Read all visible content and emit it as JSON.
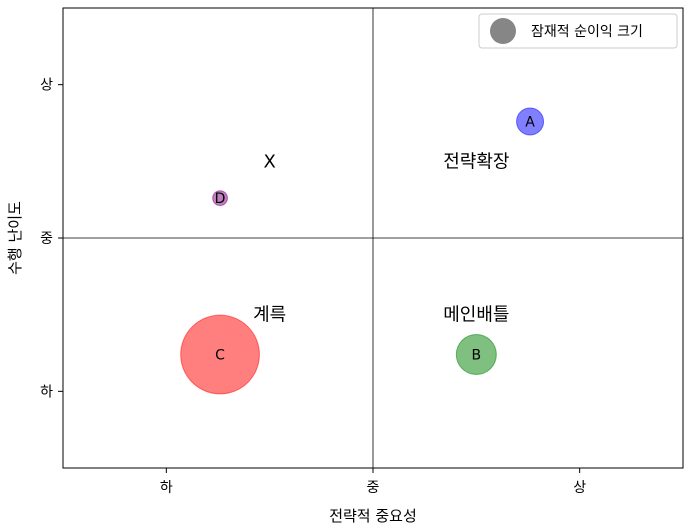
{
  "chart_data": {
    "type": "scatter",
    "title": "",
    "xlabel": "전략적 중요성",
    "ylabel": "수행 난이도",
    "xlim": [
      0,
      1.5
    ],
    "ylim": [
      0,
      1.5
    ],
    "xticks": [
      {
        "value": 0.25,
        "label": "하"
      },
      {
        "value": 0.75,
        "label": "중"
      },
      {
        "value": 1.25,
        "label": "상"
      }
    ],
    "yticks": [
      {
        "value": 0.25,
        "label": "하"
      },
      {
        "value": 0.75,
        "label": "중"
      },
      {
        "value": 1.25,
        "label": "상"
      }
    ],
    "divider_lines": {
      "x": 0.75,
      "y": 0.75
    },
    "grid": false,
    "legend": {
      "label": "잠재적 순이익 크기",
      "placement": "top-right",
      "color": "#808080"
    },
    "quadrant_labels": [
      {
        "text": "X",
        "x": 0.5,
        "y": 1.0
      },
      {
        "text": "전략확장",
        "x": 1.0,
        "y": 1.0
      },
      {
        "text": "계륵",
        "x": 0.5,
        "y": 0.5
      },
      {
        "text": "메인배틀",
        "x": 1.0,
        "y": 0.5
      }
    ],
    "points": [
      {
        "label": "A",
        "x": 1.13,
        "y": 1.13,
        "size": 1.0,
        "color": "#0000ff"
      },
      {
        "label": "B",
        "x": 1.0,
        "y": 0.37,
        "size": 2.2,
        "color": "#008000"
      },
      {
        "label": "C",
        "x": 0.38,
        "y": 0.37,
        "size": 8.5,
        "color": "#ff0000"
      },
      {
        "label": "D",
        "x": 0.38,
        "y": 0.88,
        "size": 0.3,
        "color": "#800080"
      }
    ]
  }
}
